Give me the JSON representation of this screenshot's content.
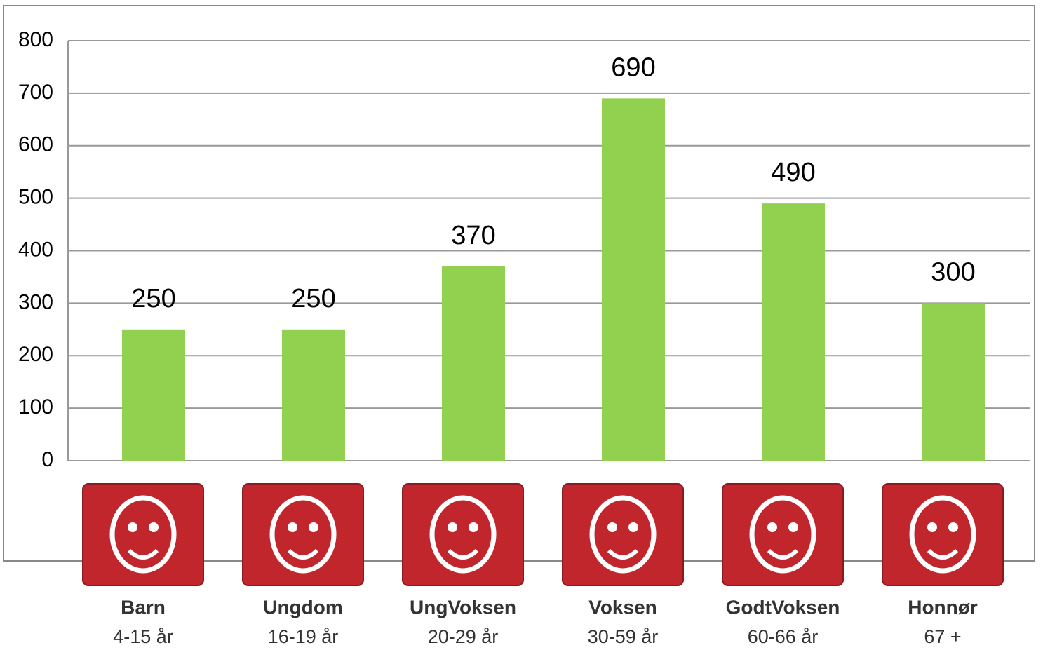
{
  "chart_data": {
    "type": "bar",
    "categories": [
      "Barn",
      "Ungdom",
      "UngVoksen",
      "Voksen",
      "GodtVoksen",
      "Honnør"
    ],
    "age_ranges": [
      "4-15 år",
      "16-19 år",
      "20-29 år",
      "30-59 år",
      "60-66 år",
      "67 +"
    ],
    "values": [
      250,
      250,
      370,
      690,
      490,
      300
    ],
    "color": "#92d050",
    "ylim": [
      0,
      800
    ],
    "yticks": [
      0,
      100,
      200,
      300,
      400,
      500,
      600,
      700,
      800
    ],
    "grid": true
  }
}
